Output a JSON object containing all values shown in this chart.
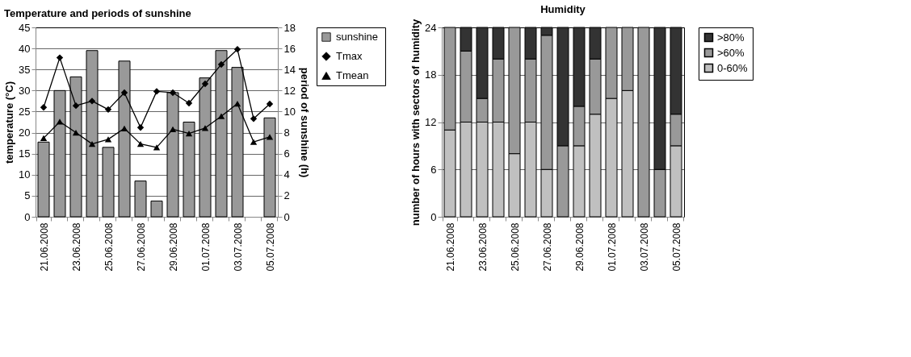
{
  "chart_data": [
    {
      "type": "bar",
      "title": "Temperature and periods of sunshine",
      "ylabel": "temperature (°C)",
      "y2label": "period of sunshine (h)",
      "categories": [
        "21.06.2008",
        null,
        "23.06.2008",
        null,
        "25.06.2008",
        null,
        "27.06.2008",
        null,
        "29.06.2008",
        null,
        "01.07.2008",
        null,
        "03.07.2008",
        null,
        "05.07.2008"
      ],
      "series": [
        {
          "name": "sunshine",
          "type": "bar",
          "axis": "y2",
          "color": "#999999",
          "values": [
            7.1,
            12.0,
            13.3,
            15.8,
            6.6,
            14.8,
            3.4,
            1.5,
            11.8,
            9.0,
            13.2,
            15.8,
            14.2,
            null,
            9.4
          ]
        },
        {
          "name": "Tmax",
          "type": "line",
          "marker": "diamond",
          "color": "#000000",
          "values": [
            26.0,
            37.8,
            26.4,
            27.5,
            25.5,
            29.5,
            21.2,
            29.8,
            29.5,
            27.0,
            31.6,
            36.2,
            39.8,
            23.3,
            26.8
          ]
        },
        {
          "name": "Tmean",
          "type": "line",
          "marker": "triangle",
          "color": "#000000",
          "values": [
            18.7,
            22.6,
            20.0,
            17.3,
            18.4,
            21.0,
            17.3,
            16.5,
            20.8,
            19.8,
            21.1,
            23.9,
            26.9,
            17.8,
            19.0
          ]
        }
      ],
      "ylim": [
        0,
        45
      ],
      "yticks": [
        0,
        5,
        10,
        15,
        20,
        25,
        30,
        35,
        40,
        45
      ],
      "y2lim": [
        0,
        18
      ],
      "y2ticks": [
        0,
        2,
        4,
        6,
        8,
        10,
        12,
        14,
        16,
        18
      ],
      "grid": "y",
      "legend": "right"
    },
    {
      "type": "bar",
      "stacked": true,
      "title": "Humidity",
      "ylabel": "number of hours with sectors of humidity",
      "categories": [
        "21.06.2008",
        null,
        "23.06.2008",
        null,
        "25.06.2008",
        null,
        "27.06.2008",
        null,
        "29.06.2008",
        null,
        "01.07.2008",
        null,
        "03.07.2008",
        null,
        "05.07.2008"
      ],
      "series": [
        {
          "name": "0-60%",
          "color": "#c0c0c0",
          "values": [
            11,
            12,
            12,
            12,
            8,
            12,
            6,
            0,
            9,
            13,
            15,
            16,
            0,
            0,
            9
          ]
        },
        {
          "name": ">60%",
          "color": "#999999",
          "values": [
            13,
            9,
            3,
            8,
            16,
            8,
            17,
            9,
            5,
            7,
            9,
            8,
            24,
            6,
            4
          ]
        },
        {
          "name": ">80%",
          "color": "#333333",
          "values": [
            0,
            3,
            9,
            4,
            0,
            4,
            1,
            15,
            10,
            4,
            0,
            0,
            0,
            18,
            11
          ]
        }
      ],
      "ylim": [
        0,
        24
      ],
      "yticks": [
        0,
        6,
        12,
        18,
        24
      ],
      "grid": "y",
      "legend": "right"
    }
  ]
}
